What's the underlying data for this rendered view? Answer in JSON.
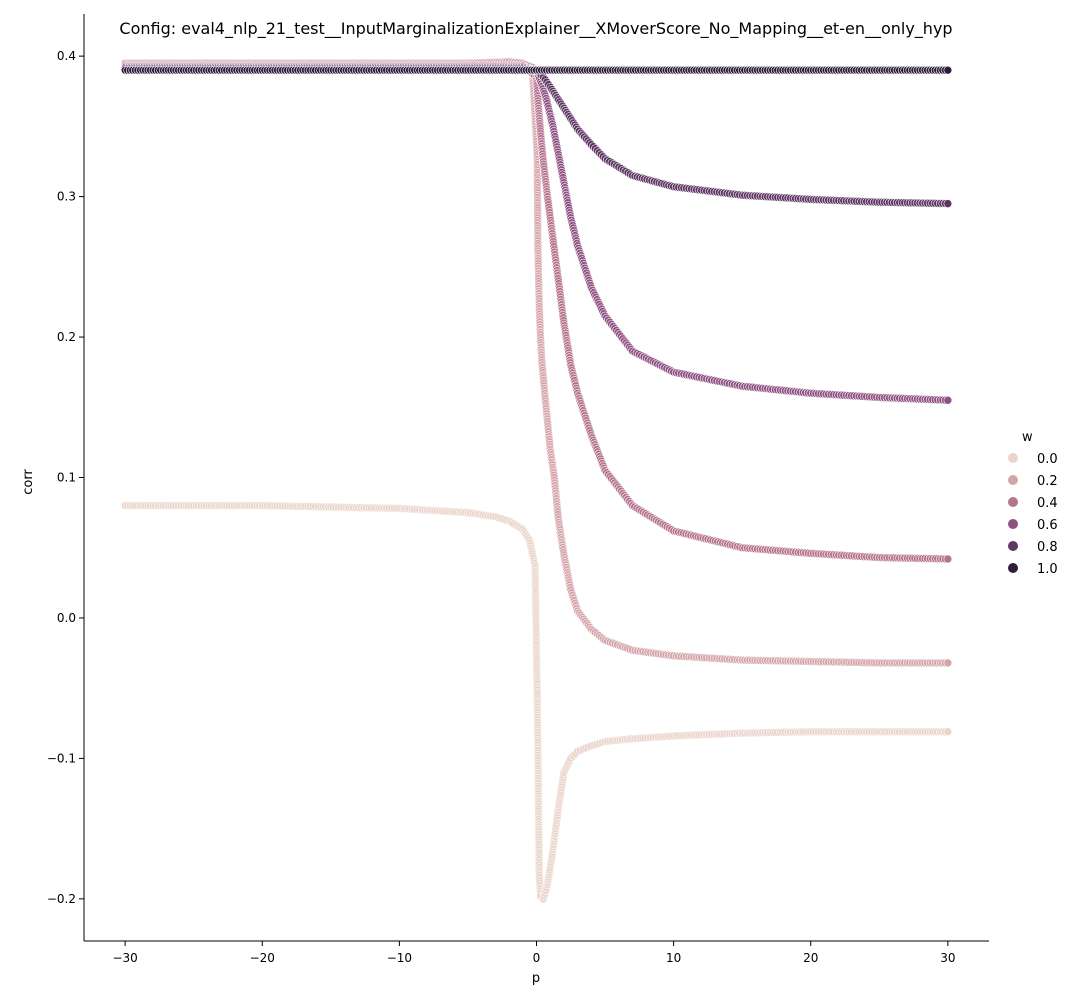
{
  "chart_data": {
    "type": "scatter",
    "title": "Config: eval4_nlp_21_test__InputMarginalizationExplainer__XMoverScore_No_Mapping__et-en__only_hyp",
    "xlabel": "p",
    "ylabel": "corr",
    "xlim": [
      -33,
      33
    ],
    "ylim": [
      -0.23,
      0.43
    ],
    "xticks": [
      -30,
      -20,
      -10,
      0,
      10,
      20,
      30
    ],
    "xtick_labels": [
      "−30",
      "−20",
      "−10",
      "0",
      "10",
      "20",
      "30"
    ],
    "yticks": [
      -0.2,
      -0.1,
      0.0,
      0.1,
      0.2,
      0.3,
      0.4
    ],
    "ytick_labels": [
      "−0.2",
      "−0.1",
      "0.0",
      "0.1",
      "0.2",
      "0.3",
      "0.4"
    ],
    "grid": false,
    "legend": {
      "title": "w",
      "placement": "right",
      "entries": [
        {
          "label": "0.0",
          "color": "#ebd4cb"
        },
        {
          "label": "0.2",
          "color": "#d5a4a8"
        },
        {
          "label": "0.4",
          "color": "#b5738e"
        },
        {
          "label": "0.6",
          "color": "#8f5282"
        },
        {
          "label": "0.8",
          "color": "#5e3563"
        },
        {
          "label": "1.0",
          "color": "#2e1e3c"
        }
      ]
    },
    "series": [
      {
        "w": 0.0,
        "color": "#ebd4cb",
        "points": [
          [
            -30,
            0.08
          ],
          [
            -25,
            0.08
          ],
          [
            -20,
            0.08
          ],
          [
            -15,
            0.079
          ],
          [
            -10,
            0.078
          ],
          [
            -5,
            0.075
          ],
          [
            -3,
            0.072
          ],
          [
            -2,
            0.069
          ],
          [
            -1,
            0.063
          ],
          [
            -0.5,
            0.055
          ],
          [
            -0.1,
            0.037
          ],
          [
            0.1,
            -0.087
          ],
          [
            0.2,
            -0.183
          ],
          [
            0.3,
            -0.198
          ],
          [
            0.5,
            -0.2
          ],
          [
            0.8,
            -0.19
          ],
          [
            1.2,
            -0.165
          ],
          [
            1.6,
            -0.135
          ],
          [
            2,
            -0.11
          ],
          [
            2.5,
            -0.1
          ],
          [
            3,
            -0.095
          ],
          [
            4,
            -0.091
          ],
          [
            5,
            -0.088
          ],
          [
            7,
            -0.086
          ],
          [
            10,
            -0.084
          ],
          [
            15,
            -0.082
          ],
          [
            20,
            -0.081
          ],
          [
            25,
            -0.081
          ],
          [
            30,
            -0.081
          ]
        ]
      },
      {
        "w": 0.2,
        "color": "#d5a4a8",
        "points": [
          [
            -30,
            0.395
          ],
          [
            -20,
            0.395
          ],
          [
            -10,
            0.395
          ],
          [
            -5,
            0.395
          ],
          [
            -2,
            0.396
          ],
          [
            -1,
            0.395
          ],
          [
            -0.3,
            0.392
          ],
          [
            0.05,
            0.33
          ],
          [
            0.1,
            0.265
          ],
          [
            0.2,
            0.222
          ],
          [
            0.3,
            0.198
          ],
          [
            0.4,
            0.182
          ],
          [
            0.6,
            0.16
          ],
          [
            0.8,
            0.14
          ],
          [
            1.0,
            0.12
          ],
          [
            1.3,
            0.1
          ],
          [
            1.6,
            0.07
          ],
          [
            2,
            0.045
          ],
          [
            2.5,
            0.02
          ],
          [
            3,
            0.005
          ],
          [
            4,
            -0.008
          ],
          [
            5,
            -0.016
          ],
          [
            7,
            -0.023
          ],
          [
            10,
            -0.027
          ],
          [
            15,
            -0.03
          ],
          [
            20,
            -0.031
          ],
          [
            25,
            -0.032
          ],
          [
            30,
            -0.032
          ]
        ]
      },
      {
        "w": 0.4,
        "color": "#b5738e",
        "points": [
          [
            -30,
            0.393
          ],
          [
            -20,
            0.393
          ],
          [
            -10,
            0.393
          ],
          [
            -5,
            0.393
          ],
          [
            -1,
            0.393
          ],
          [
            0.0,
            0.385
          ],
          [
            0.1,
            0.37
          ],
          [
            0.3,
            0.345
          ],
          [
            0.5,
            0.325
          ],
          [
            0.8,
            0.3
          ],
          [
            1.2,
            0.27
          ],
          [
            1.6,
            0.24
          ],
          [
            2,
            0.21
          ],
          [
            2.5,
            0.18
          ],
          [
            3,
            0.16
          ],
          [
            4,
            0.13
          ],
          [
            5,
            0.105
          ],
          [
            7,
            0.08
          ],
          [
            10,
            0.062
          ],
          [
            15,
            0.05
          ],
          [
            20,
            0.046
          ],
          [
            25,
            0.043
          ],
          [
            30,
            0.042
          ]
        ]
      },
      {
        "w": 0.6,
        "color": "#8f5282",
        "points": [
          [
            -30,
            0.392
          ],
          [
            -20,
            0.392
          ],
          [
            -10,
            0.392
          ],
          [
            -5,
            0.392
          ],
          [
            -1,
            0.392
          ],
          [
            0.0,
            0.39
          ],
          [
            0.3,
            0.382
          ],
          [
            0.7,
            0.37
          ],
          [
            1.2,
            0.35
          ],
          [
            1.6,
            0.33
          ],
          [
            2,
            0.31
          ],
          [
            2.5,
            0.285
          ],
          [
            3,
            0.265
          ],
          [
            4,
            0.235
          ],
          [
            5,
            0.215
          ],
          [
            7,
            0.19
          ],
          [
            10,
            0.175
          ],
          [
            15,
            0.165
          ],
          [
            20,
            0.16
          ],
          [
            25,
            0.157
          ],
          [
            30,
            0.155
          ]
        ]
      },
      {
        "w": 0.8,
        "color": "#5e3563",
        "points": [
          [
            -30,
            0.391
          ],
          [
            -20,
            0.391
          ],
          [
            -10,
            0.391
          ],
          [
            -5,
            0.391
          ],
          [
            -1,
            0.391
          ],
          [
            0.0,
            0.39
          ],
          [
            0.5,
            0.385
          ],
          [
            1,
            0.378
          ],
          [
            2,
            0.363
          ],
          [
            3,
            0.348
          ],
          [
            4,
            0.337
          ],
          [
            5,
            0.327
          ],
          [
            7,
            0.315
          ],
          [
            10,
            0.307
          ],
          [
            15,
            0.301
          ],
          [
            20,
            0.298
          ],
          [
            25,
            0.296
          ],
          [
            30,
            0.295
          ]
        ]
      },
      {
        "w": 1.0,
        "color": "#2e1e3c",
        "points": [
          [
            -30,
            0.39
          ],
          [
            -20,
            0.39
          ],
          [
            -10,
            0.39
          ],
          [
            0,
            0.39
          ],
          [
            10,
            0.39
          ],
          [
            20,
            0.39
          ],
          [
            30,
            0.39
          ]
        ]
      }
    ]
  }
}
